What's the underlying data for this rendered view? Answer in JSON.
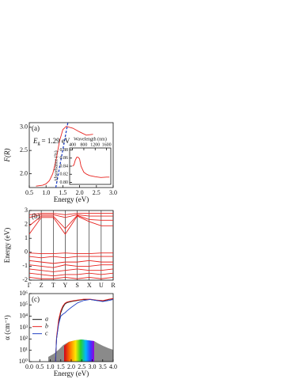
{
  "chart_data": [
    {
      "type": "line",
      "panel_label": "(a)",
      "xlabel": "Energy (eV)",
      "ylabel": "F(R)",
      "xlim": [
        0.5,
        3.0
      ],
      "xticks": [
        0.5,
        {
          "value": 1.0,
          "label": "1.0"
        },
        1.5,
        {
          "value": 2.0,
          "label": "2.0"
        },
        2.5,
        {
          "value": 3.0,
          "label": "3.0"
        }
      ],
      "ylim": [
        1.7,
        3.1
      ],
      "yticks": [
        {
          "value": 2.0,
          "label": "2.0"
        },
        2.5,
        {
          "value": 3.0,
          "label": "3.0"
        }
      ],
      "series": [
        {
          "color": "#e8231f",
          "x": [
            0.7,
            0.9,
            1.0,
            1.1,
            1.2,
            1.3,
            1.4,
            1.5,
            1.6,
            1.8,
            2.0,
            2.2,
            2.4
          ],
          "values": [
            1.73,
            1.75,
            1.78,
            1.85,
            2.0,
            2.3,
            2.7,
            2.95,
            3.02,
            2.98,
            2.9,
            2.83,
            2.85
          ]
        },
        {
          "color": "#1f3fc4",
          "dash": true,
          "x": [
            1.29,
            1.65
          ],
          "values": [
            1.7,
            3.1
          ]
        }
      ],
      "annotation": {
        "symbol": "E",
        "subscript": "g",
        "text": "= 1.29 eV"
      },
      "inset": {
        "type": "line",
        "xlabel": "Wavelength (nm)",
        "ylabel": "Absorbance (%)",
        "xaxis": "top",
        "xlim": [
          300,
          1750
        ],
        "xticks": [
          400,
          800,
          1200,
          1600
        ],
        "ylim": [
          0.795,
          0.885
        ],
        "yticks": [
          {
            "value": 0.8,
            "label": "0.80"
          },
          0.82,
          0.84,
          0.86,
          0.88
        ],
        "series": [
          {
            "color": "#e8231f",
            "x": [
              400,
              450,
              500,
              550,
              600,
              650,
              700,
              800,
              900,
              1000,
              1200,
              1400,
              1600,
              1700
            ],
            "values": [
              0.84,
              0.843,
              0.855,
              0.862,
              0.862,
              0.858,
              0.84,
              0.825,
              0.82,
              0.817,
              0.814,
              0.812,
              0.813,
              0.813
            ]
          }
        ]
      }
    },
    {
      "type": "line",
      "panel_label": "(b)",
      "ylabel": "Energy (eV)",
      "categories": [
        "Γ",
        "Z",
        "T",
        "Y",
        "S",
        "X",
        "U",
        "R"
      ],
      "ylim": [
        -2,
        3
      ],
      "yticks": [
        -2,
        -1,
        0,
        1,
        2,
        3
      ],
      "series": [
        {
          "color": "#e8231f",
          "values": [
            1.3,
            2.5,
            2.5,
            1.3,
            2.6,
            2.2,
            1.9,
            1.9
          ]
        },
        {
          "color": "#e8231f",
          "values": [
            1.9,
            2.6,
            2.6,
            1.7,
            2.65,
            2.35,
            2.3,
            2.3
          ]
        },
        {
          "color": "#e8231f",
          "values": [
            2.5,
            2.7,
            2.7,
            2.5,
            2.7,
            2.6,
            2.6,
            2.6
          ]
        },
        {
          "color": "#e8231f",
          "values": [
            2.7,
            2.8,
            2.8,
            2.7,
            2.8,
            2.8,
            2.8,
            2.8
          ]
        },
        {
          "color": "#e8231f",
          "values": [
            -0.05,
            -0.1,
            -0.1,
            -0.05,
            -0.1,
            -0.1,
            -0.05,
            -0.05
          ]
        },
        {
          "color": "#e8231f",
          "values": [
            -0.3,
            -0.4,
            -0.3,
            -0.4,
            -0.3,
            -0.3,
            -0.3,
            -0.3
          ]
        },
        {
          "color": "#e8231f",
          "values": [
            -0.6,
            -0.7,
            -0.8,
            -0.7,
            -0.7,
            -0.6,
            -0.7,
            -0.7
          ]
        },
        {
          "color": "#e8231f",
          "values": [
            -0.9,
            -1.0,
            -1.1,
            -0.9,
            -1.0,
            -1.0,
            -0.9,
            -0.9
          ]
        },
        {
          "color": "#e8231f",
          "values": [
            -1.2,
            -1.3,
            -1.4,
            -1.3,
            -1.2,
            -1.3,
            -1.3,
            -1.2
          ]
        },
        {
          "color": "#e8231f",
          "values": [
            -1.5,
            -1.6,
            -1.7,
            -1.6,
            -1.6,
            -1.5,
            -1.6,
            -1.5
          ]
        },
        {
          "color": "#e8231f",
          "values": [
            -1.8,
            -1.9,
            -1.9,
            -1.8,
            -1.9,
            -1.8,
            -1.9,
            -1.8
          ]
        }
      ]
    },
    {
      "type": "line",
      "panel_label": "(c)",
      "xlabel": "Energy (eV)",
      "ylabel": "α (cm⁻¹)",
      "ylog": true,
      "legend": "left",
      "xlim": [
        0,
        4
      ],
      "xticks": [
        {
          "value": 0,
          "label": "0.0"
        },
        0.5,
        {
          "value": 1,
          "label": "1.0"
        },
        1.5,
        {
          "value": 2,
          "label": "2.0"
        },
        2.5,
        {
          "value": 3,
          "label": "3.0"
        },
        3.5,
        {
          "value": 4,
          "label": "4.0"
        }
      ],
      "ylim": [
        1,
        1000000
      ],
      "yticks": [
        {
          "value": 1,
          "label": "10⁰"
        },
        {
          "value": 10,
          "label": "10¹"
        },
        {
          "value": 100,
          "label": "10²"
        },
        {
          "value": 1000,
          "label": "10³"
        },
        {
          "value": 10000,
          "label": "10⁴"
        },
        {
          "value": 100000,
          "label": "10⁵"
        },
        {
          "value": 1000000,
          "label": "10⁶"
        }
      ],
      "series": [
        {
          "name": "a",
          "color": "#111111",
          "x": [
            1.25,
            1.3,
            1.4,
            1.5,
            1.6,
            1.7,
            1.8,
            2.0,
            2.3,
            2.6,
            2.9,
            3.2,
            3.5,
            3.8,
            4.0
          ],
          "values": [
            1,
            100,
            3000,
            20000,
            60000,
            120000,
            160000,
            200000,
            250000,
            300000,
            300000,
            250000,
            220000,
            300000,
            350000
          ]
        },
        {
          "name": "b",
          "color": "#e8231f",
          "x": [
            1.25,
            1.3,
            1.4,
            1.5,
            1.6,
            1.7,
            1.8,
            2.0,
            2.3,
            2.6,
            2.9,
            3.2,
            3.5,
            3.8,
            4.0
          ],
          "values": [
            1,
            150,
            5000,
            30000,
            80000,
            140000,
            180000,
            220000,
            270000,
            320000,
            320000,
            270000,
            240000,
            320000,
            370000
          ]
        },
        {
          "name": "c",
          "color": "#1f3fc4",
          "x": [
            1.25,
            1.3,
            1.4,
            1.5,
            1.6,
            1.7,
            1.8,
            2.0,
            2.3,
            2.6,
            2.9,
            3.2,
            3.5,
            3.8,
            4.0
          ],
          "values": [
            1,
            100,
            2000,
            10000,
            15000,
            20000,
            30000,
            60000,
            150000,
            250000,
            300000,
            250000,
            200000,
            250000,
            300000
          ]
        }
      ]
    }
  ]
}
